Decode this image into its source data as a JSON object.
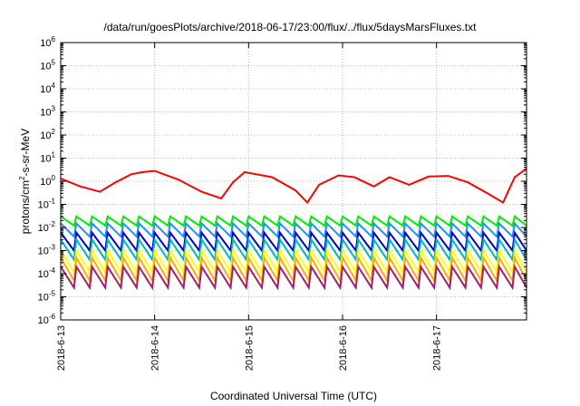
{
  "chart_data": {
    "type": "line",
    "title": "/data/run/goesPlots/archive/2018-06-17/23:00/flux/../flux/5daysMarsFluxes.txt",
    "xlabel": "Coordinated Universal Time (UTC)",
    "ylabel": {
      "prefix": "protons/cm",
      "sup": "2",
      "suffix": "-s-sr-MeV"
    },
    "y_scale": "log",
    "ylim": [
      1e-06,
      1000000.0
    ],
    "y_ticks": [
      {
        "base": "10",
        "exp": "6"
      },
      {
        "base": "10",
        "exp": "5"
      },
      {
        "base": "10",
        "exp": "4"
      },
      {
        "base": "10",
        "exp": "3"
      },
      {
        "base": "10",
        "exp": "2"
      },
      {
        "base": "10",
        "exp": "1"
      },
      {
        "base": "10",
        "exp": "0"
      },
      {
        "base": "10",
        "exp": "-1"
      },
      {
        "base": "10",
        "exp": "-2"
      },
      {
        "base": "10",
        "exp": "-3"
      },
      {
        "base": "10",
        "exp": "-4"
      },
      {
        "base": "10",
        "exp": "-5"
      },
      {
        "base": "10",
        "exp": "-6"
      }
    ],
    "x_ticks": [
      "2018-6-13",
      "2018-6-14",
      "2018-6-15",
      "2018-6-16",
      "2018-6-17"
    ],
    "xlim": [
      "2018-06-13 00:00",
      "2018-06-17 23:00"
    ],
    "grid": true,
    "legend": "none",
    "colors": {
      "red": "#ff0000",
      "green": "#00ee00",
      "blue_light": "#1e90ff",
      "blue_dark": "#0000cd",
      "cyan": "#00b8b8",
      "yellow": "#ffff00",
      "orange": "#ffaa00",
      "purple": "#a0206a"
    },
    "series": [
      {
        "color_key": "red",
        "pattern": "slow",
        "x": [
          "2018-06-13 00:00",
          "2018-06-13 05:00",
          "2018-06-13 10:00",
          "2018-06-13 14:00",
          "2018-06-13 18:00",
          "2018-06-13 21:00",
          "2018-06-14 00:00",
          "2018-06-14 06:00",
          "2018-06-14 12:00",
          "2018-06-14 17:00",
          "2018-06-14 20:00",
          "2018-06-14 23:00",
          "2018-06-15 06:00",
          "2018-06-15 12:00",
          "2018-06-15 15:00",
          "2018-06-15 18:00",
          "2018-06-15 23:00",
          "2018-06-16 03:00",
          "2018-06-16 08:00",
          "2018-06-16 12:00",
          "2018-06-16 17:00",
          "2018-06-16 22:00",
          "2018-06-17 03:00",
          "2018-06-17 08:00",
          "2018-06-17 13:00",
          "2018-06-17 17:00",
          "2018-06-17 20:00",
          "2018-06-17 23:00"
        ],
        "y": [
          1.3,
          0.6,
          0.35,
          0.9,
          2.0,
          2.5,
          2.8,
          1.2,
          0.35,
          0.18,
          0.9,
          2.5,
          1.5,
          0.4,
          0.12,
          0.7,
          1.8,
          1.5,
          0.6,
          1.5,
          0.7,
          1.6,
          1.7,
          0.9,
          0.3,
          0.12,
          1.5,
          3.5
        ]
      },
      {
        "color_key": "green",
        "pattern": "sawtooth",
        "period_hours": 4,
        "x_start": "2018-06-13 00:00",
        "x_end": "2018-06-17 23:00",
        "y_peak": 0.03,
        "y_trough": 0.012
      },
      {
        "color_key": "blue_light",
        "pattern": "sawtooth",
        "period_hours": 4,
        "x_start": "2018-06-13 00:00",
        "x_end": "2018-06-17 23:00",
        "y_peak": 0.015,
        "y_trough": 0.004
      },
      {
        "color_key": "blue_dark",
        "pattern": "sawtooth",
        "period_hours": 4,
        "x_start": "2018-06-13 00:00",
        "x_end": "2018-06-17 23:00",
        "y_peak": 0.006,
        "y_trough": 0.001
      },
      {
        "color_key": "cyan",
        "pattern": "sawtooth",
        "period_hours": 4,
        "x_start": "2018-06-13 00:00",
        "x_end": "2018-06-17 23:00",
        "y_peak": 0.003,
        "y_trough": 0.0004
      },
      {
        "color_key": "yellow",
        "pattern": "sawtooth",
        "period_hours": 4,
        "x_start": "2018-06-13 00:00",
        "x_end": "2018-06-17 23:00",
        "y_peak": 0.001,
        "y_trough": 0.00012
      },
      {
        "color_key": "orange",
        "pattern": "sawtooth",
        "period_hours": 4,
        "x_start": "2018-06-13 00:00",
        "x_end": "2018-06-17 23:00",
        "y_peak": 0.0005,
        "y_trough": 5e-05
      },
      {
        "color_key": "purple",
        "pattern": "sawtooth",
        "period_hours": 4,
        "x_start": "2018-06-13 00:00",
        "x_end": "2018-06-17 23:00",
        "y_peak": 0.0002,
        "y_trough": 2.5e-05
      }
    ]
  }
}
